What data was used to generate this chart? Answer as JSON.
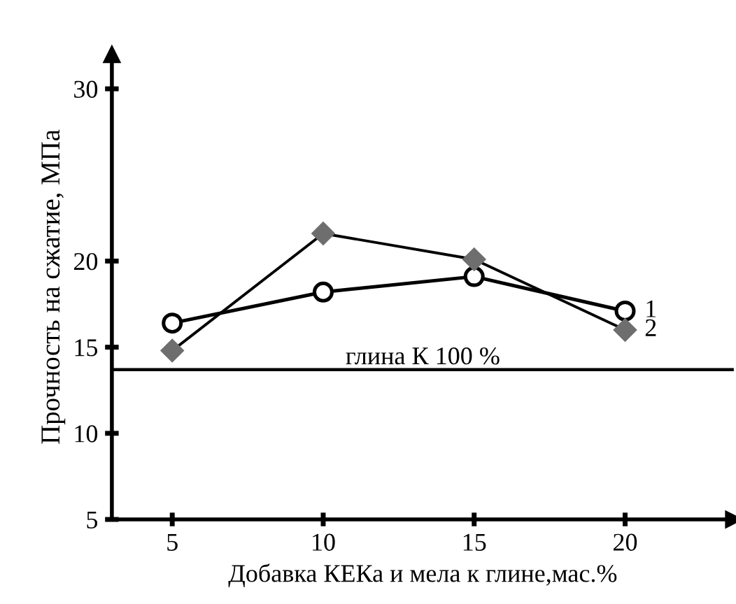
{
  "chart_data": {
    "type": "line",
    "xlabel": "Добавка КЕКа и мела к глине,мас.%",
    "ylabel": "Прочность на сжатие, МПа",
    "x": [
      5,
      10,
      15,
      20
    ],
    "series": [
      {
        "name": "1",
        "color": "#000000",
        "marker": "circle",
        "values": [
          16.4,
          18.2,
          19.1,
          17.1
        ]
      },
      {
        "name": "2",
        "color": "#6e6e6e",
        "marker": "diamond",
        "values": [
          14.8,
          21.6,
          20.1,
          16.0
        ]
      }
    ],
    "ref_lines": [
      {
        "axis": "y",
        "value": 13.7,
        "label": "глина К 100 %",
        "color": "#000000"
      }
    ],
    "xlim": [
      3,
      23.6
    ],
    "ylim": [
      5,
      32
    ],
    "xticks": [
      5,
      10,
      15,
      20
    ],
    "yticks": [
      5,
      10,
      15,
      20,
      30
    ],
    "grid": false,
    "legend": false
  }
}
